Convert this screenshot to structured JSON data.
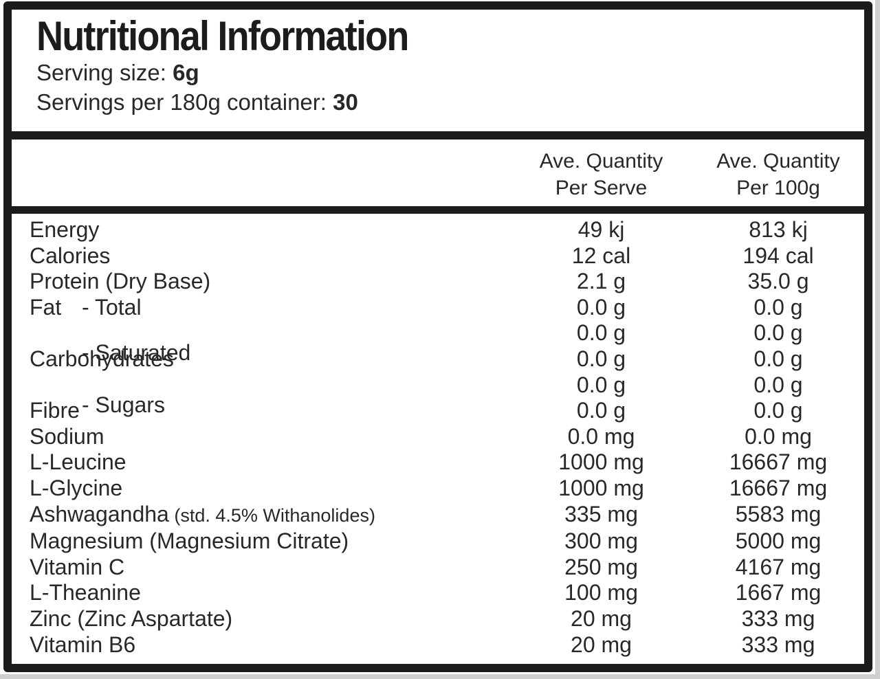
{
  "header": {
    "title": "Nutritional Information",
    "serving_size_label": "Serving size:",
    "serving_size_value": "6g",
    "servings_per_container_label": "Servings per 180g container:",
    "servings_per_container_value": "30"
  },
  "table": {
    "columns": [
      {
        "line1": "Ave. Quantity",
        "line2": "Per Serve"
      },
      {
        "line1": "Ave. Quantity",
        "line2": "Per 100g"
      }
    ],
    "rows": [
      {
        "label": "Energy",
        "sub": "",
        "note": "",
        "per_serve": "49 kj",
        "per_100g": "813 kj"
      },
      {
        "label": "Calories",
        "sub": "",
        "note": "",
        "per_serve": "12 cal",
        "per_100g": "194 cal"
      },
      {
        "label": "Protein (Dry Base)",
        "sub": "",
        "note": "",
        "per_serve": "2.1 g",
        "per_100g": "35.0 g"
      },
      {
        "label": "Fat",
        "sub": "- Total",
        "note": "",
        "per_serve": "0.0 g",
        "per_100g": "0.0 g"
      },
      {
        "label": "",
        "sub": "- Saturated",
        "note": "",
        "per_serve": "0.0 g",
        "per_100g": "0.0 g"
      },
      {
        "label": "Carbohydrates",
        "sub": "",
        "note": "",
        "per_serve": "0.0 g",
        "per_100g": "0.0 g"
      },
      {
        "label": "",
        "sub": "- Sugars",
        "note": "",
        "per_serve": "0.0 g",
        "per_100g": "0.0 g"
      },
      {
        "label": "Fibre",
        "sub": "",
        "note": "",
        "per_serve": "0.0 g",
        "per_100g": "0.0 g"
      },
      {
        "label": "Sodium",
        "sub": "",
        "note": "",
        "per_serve": "0.0 mg",
        "per_100g": "0.0 mg"
      },
      {
        "label": "L-Leucine",
        "sub": "",
        "note": "",
        "per_serve": "1000 mg",
        "per_100g": "16667 mg"
      },
      {
        "label": "L-Glycine",
        "sub": "",
        "note": "",
        "per_serve": "1000 mg",
        "per_100g": "16667 mg"
      },
      {
        "label": "Ashwagandha",
        "sub": "",
        "note": "(std. 4.5% Withanolides)",
        "per_serve": "335 mg",
        "per_100g": "5583 mg"
      },
      {
        "label": "Magnesium (Magnesium Citrate)",
        "sub": "",
        "note": "",
        "per_serve": "300 mg",
        "per_100g": "5000 mg"
      },
      {
        "label": "Vitamin C",
        "sub": "",
        "note": "",
        "per_serve": "250 mg",
        "per_100g": "4167 mg"
      },
      {
        "label": "L-Theanine",
        "sub": "",
        "note": "",
        "per_serve": "100 mg",
        "per_100g": "1667 mg"
      },
      {
        "label": "Zinc (Zinc Aspartate)",
        "sub": "",
        "note": "",
        "per_serve": "20 mg",
        "per_100g": "333 mg"
      },
      {
        "label": "Vitamin B6",
        "sub": "",
        "note": "",
        "per_serve": "20 mg",
        "per_100g": "333 mg"
      }
    ]
  },
  "colors": {
    "border": "#1b1b1b",
    "text": "#282828",
    "panel_background": "#ffffff",
    "page_edge": "#cfcfcf"
  }
}
